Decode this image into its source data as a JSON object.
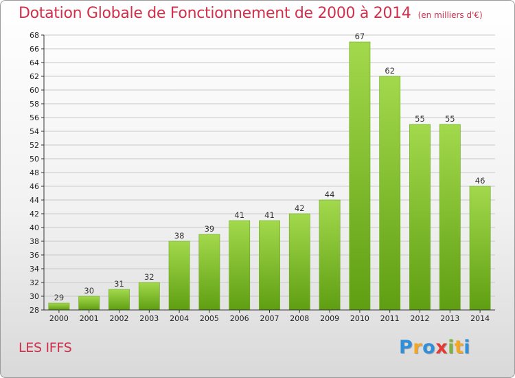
{
  "header": {
    "title": "Dotation Globale de Fonctionnement de 2000 à 2014",
    "units": "(en milliers d'€)"
  },
  "footer": {
    "commune": "LES IFFS",
    "logo_letters": [
      "P",
      "r",
      "o",
      "x",
      "i",
      "t",
      "i"
    ],
    "logo_colors": [
      "#2f8fd8",
      "#f5a623",
      "#2f8fd8",
      "#e53935",
      "#7cb342",
      "#f5a623",
      "#2f8fd8"
    ]
  },
  "colors": {
    "bar_light": "#a3d94c",
    "bar_dark": "#5f9e12",
    "grid": "#c8c8c8",
    "title": "#d0304b"
  },
  "chart_data": {
    "type": "bar",
    "categories": [
      "2000",
      "2001",
      "2002",
      "2003",
      "2004",
      "2005",
      "2006",
      "2007",
      "2008",
      "2009",
      "2010",
      "2011",
      "2012",
      "2013",
      "2014"
    ],
    "values": [
      29,
      30,
      31,
      32,
      38,
      39,
      41,
      41,
      42,
      44,
      67,
      62,
      55,
      55,
      46
    ],
    "title": "Dotation Globale de Fonctionnement de 2000 à 2014",
    "xlabel": "",
    "ylabel": "",
    "ylim": [
      28,
      68
    ],
    "yticks": [
      28,
      30,
      32,
      34,
      36,
      38,
      40,
      42,
      44,
      46,
      48,
      50,
      52,
      54,
      56,
      58,
      60,
      62,
      64,
      66,
      68
    ],
    "grid": true,
    "data_labels": true
  }
}
